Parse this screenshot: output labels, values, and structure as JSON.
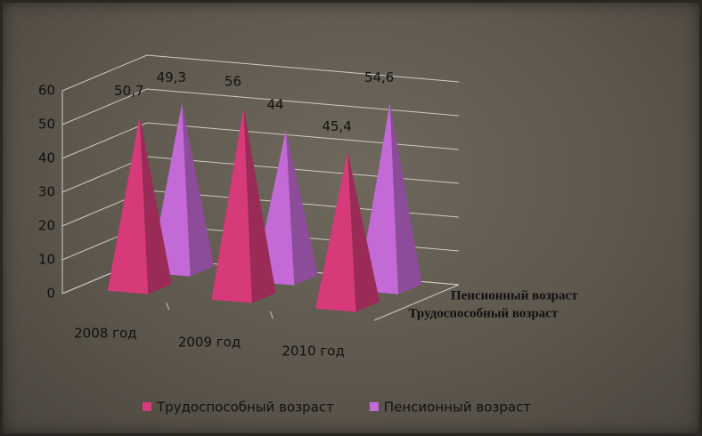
{
  "chart_data": {
    "type": "pyramid3d",
    "categories": [
      "2008 год",
      "2009 год",
      "2010 год"
    ],
    "series": [
      {
        "name": "Трудоспособный возраст",
        "color": "#d63a78",
        "values": [
          50.7,
          56,
          45.4
        ],
        "value_labels": [
          "50,7",
          "56",
          "45,4"
        ]
      },
      {
        "name": "Пенсионный возраст",
        "color": "#c36ad6",
        "values": [
          49.3,
          44,
          54.6
        ],
        "value_labels": [
          "49,3",
          "44",
          "54,6"
        ]
      }
    ],
    "ylim": [
      0,
      60
    ],
    "yticks": [
      0,
      10,
      20,
      30,
      40,
      50,
      60
    ],
    "grid": true,
    "legend": "bottom"
  }
}
